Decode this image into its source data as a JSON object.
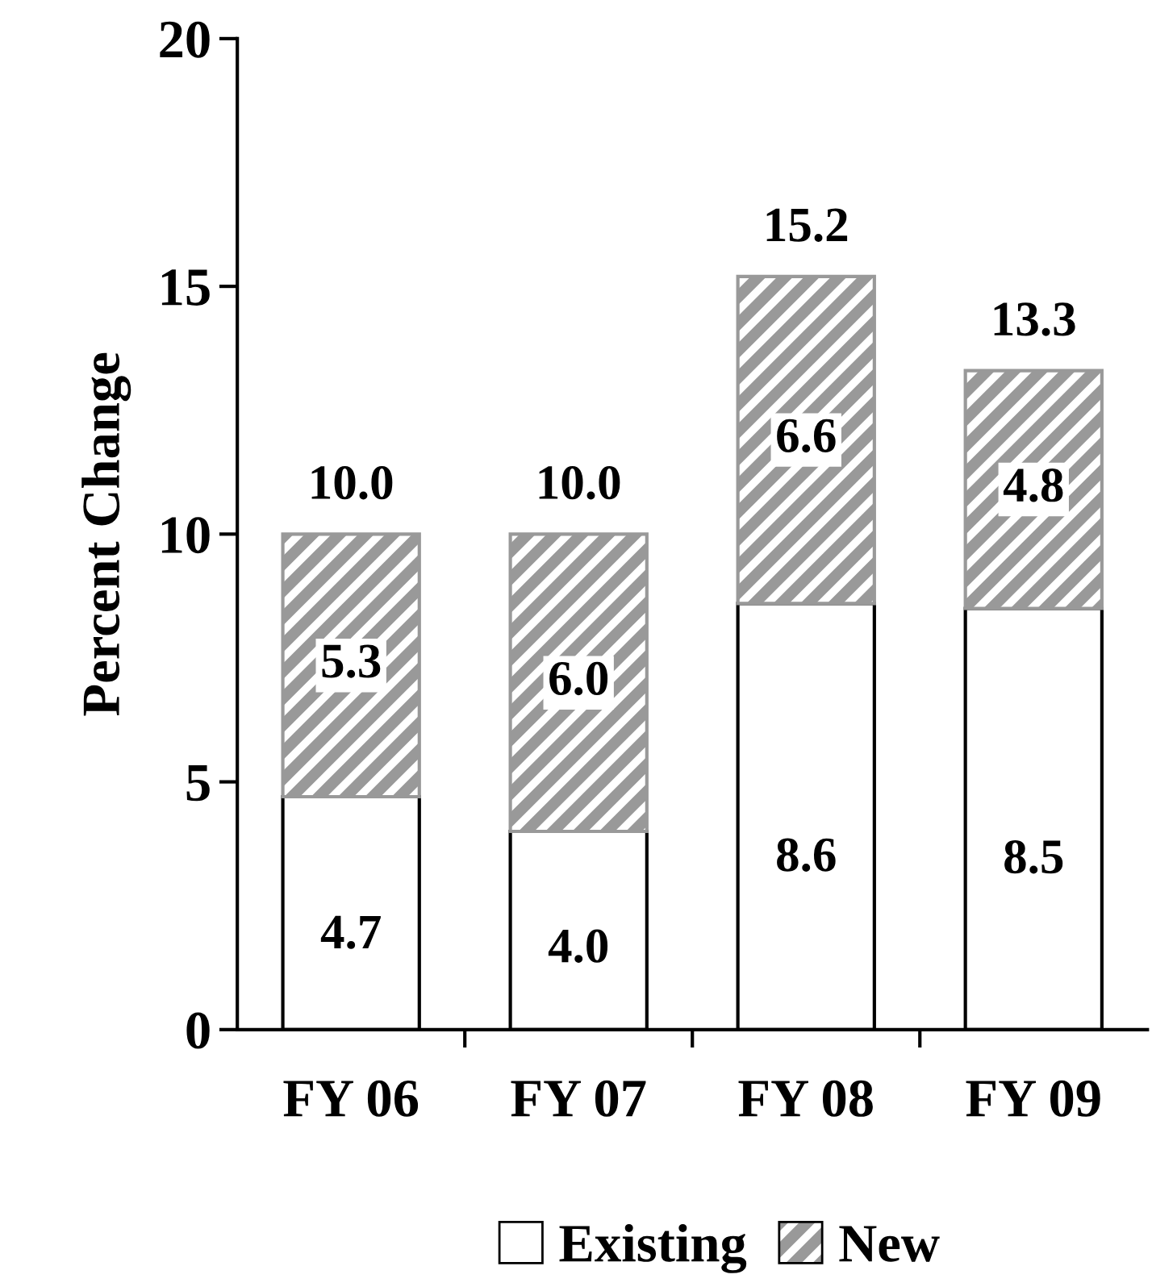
{
  "chart_data": {
    "type": "bar",
    "stacked": true,
    "ylabel": "Percent Change",
    "categories": [
      "FY 06",
      "FY 07",
      "FY 08",
      "FY 09"
    ],
    "series": [
      {
        "name": "Existing",
        "color": "#ffffff",
        "values": [
          4.7,
          4.0,
          8.6,
          8.5
        ],
        "value_labels": [
          "4.7",
          "4.0",
          "8.6",
          "8.5"
        ]
      },
      {
        "name": "New",
        "color": "#999999",
        "values": [
          5.3,
          6.0,
          6.6,
          4.8
        ],
        "value_labels": [
          "5.3",
          "6.0",
          "6.6",
          "4.8"
        ]
      }
    ],
    "totals": [
      "10.0",
      "10.0",
      "15.2",
      "13.3"
    ],
    "ylim": [
      0,
      20
    ],
    "yticks": [
      0,
      5,
      10,
      15,
      20
    ],
    "grid": false,
    "legend": "bottom"
  }
}
